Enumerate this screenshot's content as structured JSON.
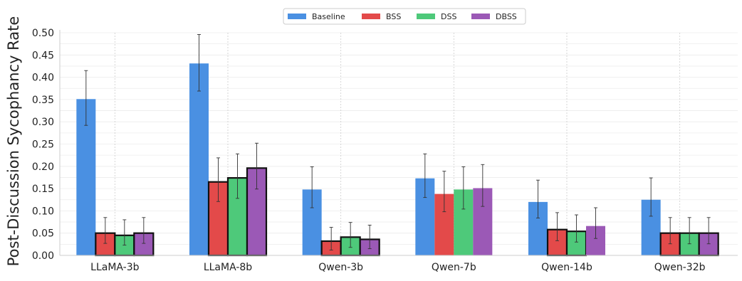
{
  "chart_data": {
    "type": "bar",
    "title": "",
    "xlabel": "",
    "ylabel": "Post-Discussion Sycophancy Rate",
    "ylim": [
      0,
      0.5
    ],
    "yticks": [
      "0.00",
      "0.05",
      "0.10",
      "0.15",
      "0.20",
      "0.25",
      "0.30",
      "0.35",
      "0.40",
      "0.45",
      "0.50"
    ],
    "categories": [
      "LLaMA-3b",
      "LLaMA-8b",
      "Qwen-3b",
      "Qwen-7b",
      "Qwen-14b",
      "Qwen-32b"
    ],
    "grid": true,
    "legend_position": "top-center",
    "series": [
      {
        "name": "Baseline",
        "color": "#4a90e2",
        "values": [
          0.351,
          0.431,
          0.148,
          0.173,
          0.12,
          0.125
        ],
        "err_low": [
          0.292,
          0.369,
          0.107,
          0.13,
          0.084,
          0.088
        ],
        "err_high": [
          0.415,
          0.496,
          0.199,
          0.228,
          0.169,
          0.174
        ],
        "highlight": [
          false,
          false,
          false,
          false,
          false,
          false
        ]
      },
      {
        "name": "BSS",
        "color": "#e34a4a",
        "values": [
          0.05,
          0.165,
          0.032,
          0.138,
          0.058,
          0.05
        ],
        "err_low": [
          0.027,
          0.121,
          0.012,
          0.098,
          0.033,
          0.026
        ],
        "err_high": [
          0.085,
          0.219,
          0.063,
          0.189,
          0.096,
          0.085
        ],
        "highlight": [
          true,
          true,
          true,
          false,
          true,
          true
        ]
      },
      {
        "name": "DSS",
        "color": "#4ec97a",
        "values": [
          0.045,
          0.174,
          0.041,
          0.148,
          0.054,
          0.05
        ],
        "err_low": [
          0.023,
          0.128,
          0.018,
          0.104,
          0.03,
          0.026
        ],
        "err_high": [
          0.08,
          0.228,
          0.074,
          0.199,
          0.091,
          0.085
        ],
        "highlight": [
          true,
          true,
          true,
          false,
          true,
          true
        ]
      },
      {
        "name": "DBSS",
        "color": "#9b59b6",
        "values": [
          0.05,
          0.196,
          0.036,
          0.151,
          0.066,
          0.05
        ],
        "err_low": [
          0.027,
          0.149,
          0.015,
          0.11,
          0.038,
          0.026
        ],
        "err_high": [
          0.085,
          0.252,
          0.068,
          0.204,
          0.107,
          0.085
        ],
        "highlight": [
          true,
          true,
          true,
          false,
          false,
          true
        ]
      }
    ]
  }
}
